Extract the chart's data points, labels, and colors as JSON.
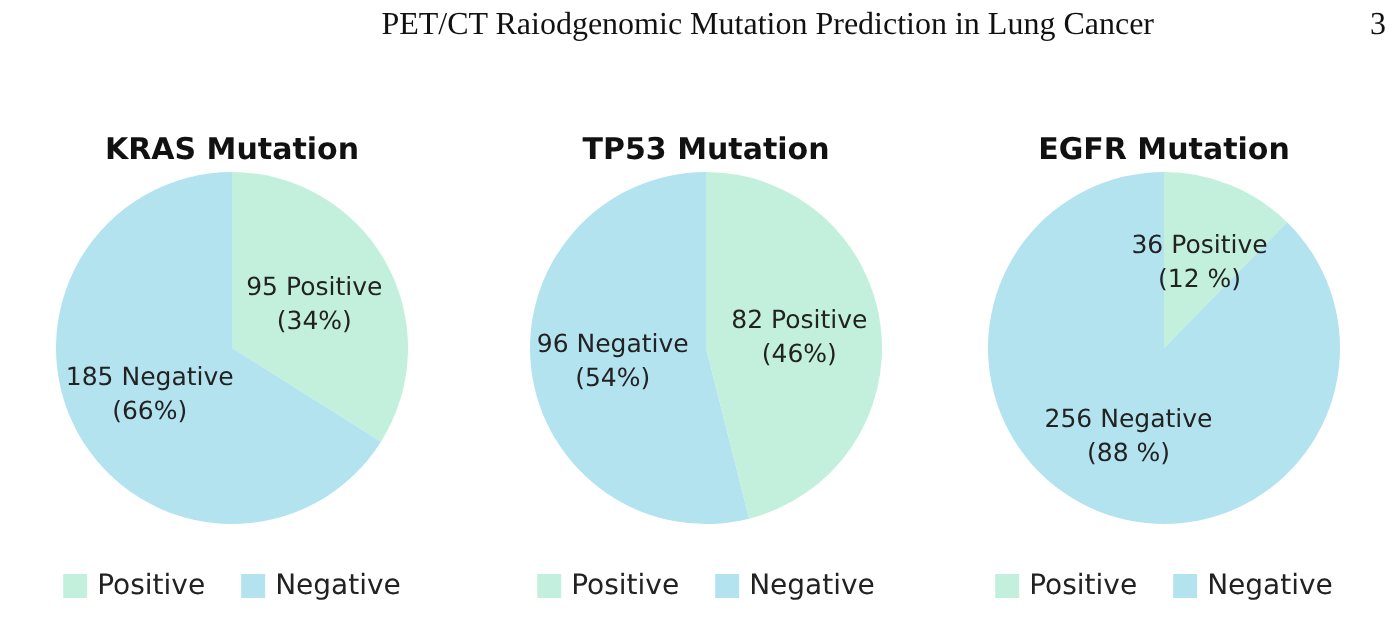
{
  "chart_data": [
    {
      "type": "pie",
      "title": "KRAS Mutation",
      "annotations": [
        "PET/CT Raiodgenomic Mutation Prediction in Lung Cancer",
        "3"
      ],
      "categories": [
        "Positive",
        "Negative"
      ],
      "values": [
        95,
        185
      ],
      "colors": [
        "#c3f0dc",
        "#b3e3ef"
      ],
      "value_labels": [
        "95 Positive\n(34%)",
        "185 Negative\n(66%)"
      ],
      "legend": "bottom"
    },
    {
      "type": "pie",
      "title": "TP53 Mutation",
      "categories": [
        "Positive",
        "Negative"
      ],
      "values": [
        82,
        96
      ],
      "colors": [
        "#c3f0dc",
        "#b3e3ef"
      ],
      "value_labels": [
        "82 Positive\n(46%)",
        "96 Negative\n(54%)"
      ],
      "legend": "bottom"
    },
    {
      "type": "pie",
      "title": "EGFR Mutation",
      "categories": [
        "Positive",
        "Negative"
      ],
      "values": [
        36,
        256
      ],
      "colors": [
        "#c3f0dc",
        "#b3e3ef"
      ],
      "value_labels": [
        "36 Positive\n(12 %)",
        "256 Negative\n(88 %)"
      ],
      "legend": "bottom"
    }
  ]
}
